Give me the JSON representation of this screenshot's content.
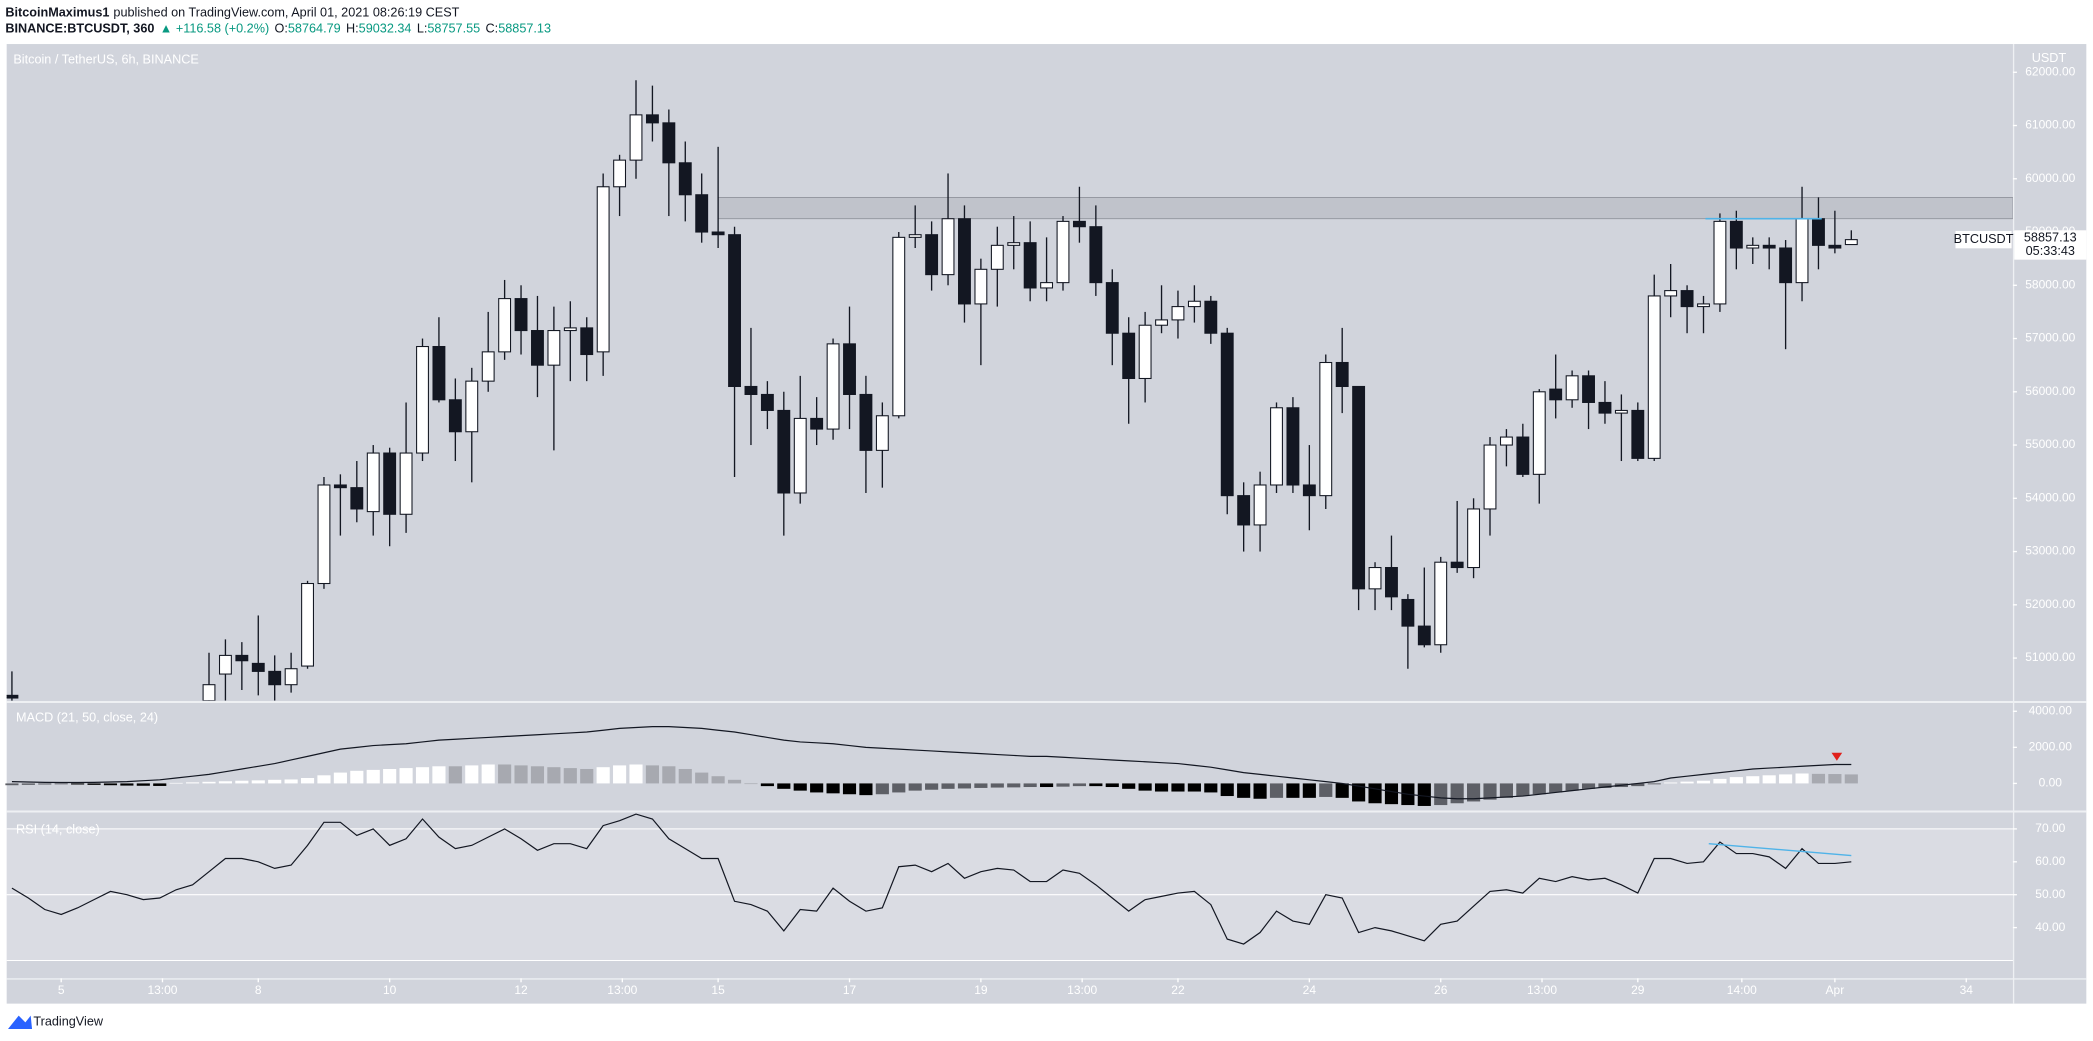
{
  "header": {
    "author": "BitcoinMaximus1",
    "published": "published on TradingView.com, April 01, 2021 08:26:19 CEST",
    "symbol": "BINANCE:BTCUSDT, 360",
    "change": "▲ +116.58 (+0.2%)",
    "o": "O:",
    "h": "H:",
    "l": "L:",
    "c": "C:"
  },
  "footer": {
    "brand": "TradingView"
  },
  "chart_data": [
    {
      "type": "candlestick",
      "title": "Bitcoin / TetherUS, 6h, BINANCE",
      "y_label": "USDT",
      "symbol_label": "BTCUSDT",
      "countdown": "05:33:43",
      "up_color": "#ffffff",
      "down_color": "#131722",
      "wick_color": "#131722",
      "xlim": [
        4.17,
        34.71
      ],
      "xticks": [
        5,
        {
          "value": 6.5417,
          "label": "13:00"
        },
        8,
        10,
        12,
        {
          "value": 13.5417,
          "label": "13:00"
        },
        15,
        17,
        19,
        {
          "value": 20.5417,
          "label": "13:00"
        },
        22,
        24,
        26,
        {
          "value": 27.5417,
          "label": "13:00"
        },
        29,
        {
          "value": 30.5833,
          "label": "14:00"
        },
        {
          "value": 32,
          "label": "Apr"
        },
        34
      ],
      "ylim": [
        50200,
        62530
      ],
      "yticks": [
        {
          "value": 51000,
          "label": "51000.00"
        },
        {
          "value": 52000,
          "label": "52000.00"
        },
        {
          "value": 53000,
          "label": "53000.00"
        },
        {
          "value": 54000,
          "label": "54000.00"
        },
        {
          "value": 55000,
          "label": "55000.00"
        },
        {
          "value": 56000,
          "label": "56000.00"
        },
        {
          "value": 57000,
          "label": "57000.00"
        },
        {
          "value": 58000,
          "label": "58000.00"
        },
        {
          "value": 59000,
          "label": "59000.00"
        },
        {
          "value": 60000,
          "label": "60000.00"
        },
        {
          "value": 61000,
          "label": "61000.00"
        },
        {
          "value": 62000,
          "label": "62000.00"
        }
      ],
      "grid": false,
      "zone": {
        "x0": 15.0,
        "y": [
          59250,
          59650
        ],
        "color": "#b2b5be"
      },
      "lines": [
        {
          "x": [
            30.03,
            31.8
          ],
          "y": [
            59250,
            59250
          ],
          "color": "#4fb3e8"
        }
      ],
      "x": [
        4.25,
        7.25,
        7.5,
        7.75,
        8,
        8.25,
        8.5,
        8.75,
        9,
        9.25,
        9.5,
        9.75,
        10,
        10.25,
        10.5,
        10.75,
        11,
        11.25,
        11.5,
        11.75,
        12,
        12.25,
        12.5,
        12.75,
        13,
        13.25,
        13.5,
        13.75,
        14,
        14.25,
        14.5,
        14.75,
        15,
        15.25,
        15.5,
        15.75,
        16,
        16.25,
        16.5,
        16.75,
        17,
        17.25,
        17.5,
        17.75,
        18,
        18.25,
        18.5,
        18.75,
        19,
        19.25,
        19.5,
        19.75,
        20,
        20.25,
        20.5,
        20.75,
        21,
        21.25,
        21.5,
        21.75,
        22,
        22.25,
        22.5,
        22.75,
        23,
        23.25,
        23.5,
        23.75,
        24,
        24.25,
        24.5,
        24.75,
        25,
        25.25,
        25.5,
        25.75,
        26,
        26.25,
        26.5,
        26.75,
        27,
        27.25,
        27.5,
        27.75,
        28,
        28.25,
        28.5,
        28.75,
        29,
        29.25,
        29.5,
        29.75,
        30,
        30.25,
        30.5,
        30.75,
        31,
        31.25,
        31.5,
        31.75,
        32,
        32.25
      ],
      "open": [
        50300,
        50200,
        50700,
        51050,
        50900,
        50750,
        50500,
        50850,
        52400,
        54250,
        54200,
        53750,
        54850,
        53700,
        54850,
        56850,
        55850,
        55250,
        56200,
        56750,
        57750,
        57150,
        56500,
        57150,
        57200,
        56750,
        59850,
        60350,
        61200,
        61050,
        60300,
        59700,
        59000,
        58950,
        56100,
        55950,
        55650,
        54100,
        55500,
        55300,
        56900,
        55950,
        54900,
        55550,
        58900,
        58950,
        58200,
        59250,
        57650,
        58300,
        58750,
        58800,
        57950,
        58050,
        59200,
        59100,
        58050,
        57100,
        56250,
        57250,
        57350,
        57600,
        57700,
        57100,
        54050,
        53500,
        54250,
        55700,
        54250,
        54050,
        56550,
        56100,
        52300,
        52700,
        52100,
        51600,
        51250,
        52800,
        52700,
        53800,
        55000,
        55150,
        54450,
        56050,
        55850,
        56300,
        55800,
        55600,
        55650,
        54750,
        57800,
        57900,
        57600,
        57650,
        59200,
        58700,
        58750,
        58700,
        58050,
        59250,
        58750,
        58764.79
      ],
      "high": [
        50750,
        51100,
        51350,
        51300,
        51800,
        51050,
        51100,
        52450,
        54400,
        54450,
        54700,
        55000,
        54950,
        55800,
        57000,
        57400,
        56250,
        56450,
        57500,
        58100,
        58000,
        57800,
        57600,
        57700,
        57400,
        60100,
        60450,
        61850,
        61750,
        61300,
        60700,
        60100,
        60600,
        59100,
        57200,
        56200,
        56000,
        56300,
        55900,
        57000,
        57600,
        56300,
        55800,
        59000,
        59500,
        59200,
        60100,
        59500,
        58500,
        59100,
        59300,
        59200,
        58900,
        59300,
        59850,
        59500,
        58300,
        57400,
        57500,
        58000,
        57900,
        58000,
        57800,
        57200,
        54300,
        54500,
        55800,
        55900,
        55000,
        56700,
        57200,
        56100,
        52800,
        53300,
        52200,
        52700,
        52900,
        53950,
        54000,
        55150,
        55300,
        55400,
        56050,
        56700,
        56400,
        56400,
        56200,
        55950,
        55800,
        58200,
        58400,
        58000,
        57800,
        59350,
        59400,
        58900,
        58900,
        58850,
        59850,
        59650,
        59400,
        59032.34
      ],
      "low": [
        50100,
        50100,
        50200,
        50400,
        50300,
        50200,
        50350,
        50800,
        52300,
        53300,
        53550,
        53300,
        53100,
        53350,
        54700,
        55800,
        54700,
        54300,
        56000,
        56600,
        56700,
        55900,
        54900,
        56200,
        56200,
        56300,
        59300,
        60000,
        60700,
        59300,
        59200,
        58800,
        58700,
        54400,
        55000,
        55300,
        53300,
        53900,
        55000,
        55100,
        55300,
        54100,
        54200,
        55500,
        58700,
        57900,
        58000,
        57300,
        56500,
        57600,
        58300,
        57700,
        57700,
        57900,
        58800,
        57800,
        56500,
        55400,
        55800,
        57100,
        57000,
        57300,
        56900,
        53700,
        53000,
        53000,
        54100,
        54100,
        53400,
        53800,
        55600,
        51900,
        51900,
        51900,
        50800,
        51200,
        51100,
        52600,
        52500,
        53300,
        54600,
        54400,
        53900,
        55500,
        55700,
        55300,
        55400,
        54700,
        54700,
        54700,
        57400,
        57100,
        57100,
        57500,
        58300,
        58400,
        58300,
        56800,
        57700,
        58300,
        58600,
        58757.55
      ],
      "close": [
        50250,
        50500,
        51050,
        50950,
        50750,
        50500,
        50800,
        52400,
        54250,
        54200,
        53800,
        54850,
        53700,
        54850,
        56850,
        55850,
        55250,
        56200,
        56750,
        57750,
        57150,
        56500,
        57150,
        57200,
        56700,
        59850,
        60350,
        61200,
        61050,
        60300,
        59700,
        59000,
        58950,
        56100,
        55950,
        55650,
        54100,
        55500,
        55300,
        56900,
        55950,
        54900,
        55550,
        58900,
        58950,
        58200,
        59250,
        57650,
        58300,
        58750,
        58800,
        57950,
        58050,
        59200,
        59100,
        58050,
        57100,
        56250,
        57250,
        57350,
        57600,
        57700,
        57100,
        54050,
        53500,
        54250,
        55700,
        54250,
        54050,
        56550,
        56100,
        52300,
        52700,
        52150,
        51600,
        51250,
        52800,
        52700,
        53800,
        55000,
        55150,
        54450,
        56000,
        55850,
        56300,
        55800,
        55600,
        55650,
        54750,
        57800,
        57900,
        57600,
        57650,
        59200,
        58700,
        58750,
        58700,
        58050,
        59250,
        58750,
        58700,
        58857.13
      ]
    },
    {
      "type": "macd",
      "title": "MACD (21, 50, close, 24)",
      "line_color": "#131722",
      "hist_colors": {
        "up_rising": "#ffffff",
        "up_falling": "#a7a9b0",
        "down_rising": "#5d5f66",
        "down_falling": "#000000"
      },
      "ylim": [
        -1480,
        4440
      ],
      "yticks": [
        {
          "value": 0,
          "label": "0.00"
        },
        {
          "value": 2000,
          "label": "2000.00"
        },
        {
          "value": 4000,
          "label": "4000.00"
        }
      ],
      "marker": {
        "x": 32.03,
        "y": 1480,
        "color": "#e0201b"
      },
      "x": [
        4.25,
        4.5,
        4.75,
        5,
        5.25,
        5.5,
        5.75,
        6,
        6.25,
        6.5,
        6.75,
        7,
        7.25,
        7.5,
        7.75,
        8,
        8.25,
        8.5,
        8.75,
        9,
        9.25,
        9.5,
        9.75,
        10,
        10.25,
        10.5,
        10.75,
        11,
        11.25,
        11.5,
        11.75,
        12,
        12.25,
        12.5,
        12.75,
        13,
        13.25,
        13.5,
        13.75,
        14,
        14.25,
        14.5,
        14.75,
        15,
        15.25,
        15.5,
        15.75,
        16,
        16.25,
        16.5,
        16.75,
        17,
        17.25,
        17.5,
        17.75,
        18,
        18.25,
        18.5,
        18.75,
        19,
        19.25,
        19.5,
        19.75,
        20,
        20.25,
        20.5,
        20.75,
        21,
        21.25,
        21.5,
        21.75,
        22,
        22.25,
        22.5,
        22.75,
        23,
        23.25,
        23.5,
        23.75,
        24,
        24.25,
        24.5,
        24.75,
        25,
        25.25,
        25.5,
        25.75,
        26,
        26.25,
        26.5,
        26.75,
        27,
        27.25,
        27.5,
        27.75,
        28,
        28.25,
        28.5,
        28.75,
        29,
        29.25,
        29.5,
        29.75,
        30,
        30.25,
        30.5,
        30.75,
        31,
        31.25,
        31.5,
        31.75,
        32,
        32.25
      ],
      "hist": [
        -100,
        -80,
        -60,
        -50,
        -60,
        -80,
        -100,
        -120,
        -130,
        -140,
        30,
        60,
        90,
        120,
        150,
        170,
        200,
        220,
        300,
        450,
        600,
        700,
        750,
        800,
        850,
        900,
        950,
        950,
        1000,
        1050,
        1050,
        1000,
        950,
        900,
        850,
        800,
        900,
        1000,
        1050,
        1000,
        950,
        800,
        600,
        400,
        200,
        0,
        -150,
        -300,
        -400,
        -500,
        -550,
        -600,
        -650,
        -600,
        -500,
        -400,
        -350,
        -300,
        -280,
        -250,
        -230,
        -220,
        -200,
        -200,
        -180,
        -150,
        -150,
        -200,
        -300,
        -400,
        -450,
        -450,
        -450,
        -500,
        -700,
        -800,
        -850,
        -800,
        -800,
        -800,
        -750,
        -800,
        -1000,
        -1100,
        -1150,
        -1200,
        -1250,
        -1200,
        -1100,
        -1000,
        -900,
        -800,
        -700,
        -600,
        -500,
        -400,
        -300,
        -250,
        -200,
        -150,
        -50,
        50,
        100,
        150,
        250,
        350,
        400,
        450,
        500,
        550,
        530,
        520,
        500
      ],
      "line": [
        100,
        80,
        60,
        50,
        50,
        60,
        80,
        100,
        150,
        200,
        300,
        400,
        500,
        650,
        800,
        950,
        1100,
        1300,
        1500,
        1700,
        1900,
        2000,
        2100,
        2150,
        2200,
        2300,
        2400,
        2450,
        2500,
        2550,
        2600,
        2650,
        2700,
        2750,
        2800,
        2850,
        2950,
        3050,
        3100,
        3150,
        3150,
        3100,
        3050,
        2950,
        2850,
        2700,
        2550,
        2400,
        2300,
        2250,
        2200,
        2100,
        2000,
        1950,
        1900,
        1850,
        1800,
        1750,
        1700,
        1650,
        1600,
        1550,
        1500,
        1500,
        1450,
        1400,
        1350,
        1300,
        1250,
        1200,
        1150,
        1100,
        1000,
        900,
        750,
        600,
        500,
        400,
        300,
        200,
        100,
        0,
        -150,
        -300,
        -450,
        -600,
        -700,
        -800,
        -850,
        -850,
        -800,
        -750,
        -700,
        -600,
        -500,
        -400,
        -300,
        -200,
        -100,
        0,
        100,
        300,
        400,
        500,
        600,
        700,
        800,
        850,
        900,
        950,
        1000,
        1050,
        1050
      ]
    },
    {
      "type": "line",
      "title": "RSI (14, close)",
      "color": "#131722",
      "ylim": [
        24.6,
        74.9
      ],
      "yticks": [
        {
          "value": 40,
          "label": "40.00"
        },
        {
          "value": 50,
          "label": "50.00"
        },
        {
          "value": 60,
          "label": "60.00"
        },
        {
          "value": 70,
          "label": "70.00"
        }
      ],
      "levels": [
        70,
        50,
        30
      ],
      "lines": [
        {
          "x": [
            30.08,
            32.25
          ],
          "y": [
            65.5,
            61.9
          ],
          "color": "#4fb3e8"
        }
      ],
      "x": [
        4.25,
        4.5,
        4.75,
        5,
        5.25,
        5.5,
        5.75,
        6,
        6.25,
        6.5,
        6.75,
        7,
        7.25,
        7.5,
        7.75,
        8,
        8.25,
        8.5,
        8.75,
        9,
        9.25,
        9.5,
        9.75,
        10,
        10.25,
        10.5,
        10.75,
        11,
        11.25,
        11.5,
        11.75,
        12,
        12.25,
        12.5,
        12.75,
        13,
        13.25,
        13.5,
        13.75,
        14,
        14.25,
        14.5,
        14.75,
        15,
        15.25,
        15.5,
        15.75,
        16,
        16.25,
        16.5,
        16.75,
        17,
        17.25,
        17.5,
        17.75,
        18,
        18.25,
        18.5,
        18.75,
        19,
        19.25,
        19.5,
        19.75,
        20,
        20.25,
        20.5,
        20.75,
        21,
        21.25,
        21.5,
        21.75,
        22,
        22.25,
        22.5,
        22.75,
        23,
        23.25,
        23.5,
        23.75,
        24,
        24.25,
        24.5,
        24.75,
        25,
        25.25,
        25.5,
        25.75,
        26,
        26.25,
        26.5,
        26.75,
        27,
        27.25,
        27.5,
        27.75,
        28,
        28.25,
        28.5,
        28.75,
        29,
        29.25,
        29.5,
        29.75,
        30,
        30.25,
        30.5,
        30.75,
        31,
        31.25,
        31.5,
        31.75,
        32,
        32.25
      ],
      "values": [
        52,
        49,
        45.5,
        44,
        46,
        48.5,
        51,
        50,
        48.5,
        49,
        51.5,
        53,
        57,
        61,
        61,
        60,
        58,
        59,
        65,
        72,
        72,
        68,
        70,
        65,
        67,
        73,
        67.5,
        64,
        65,
        67.5,
        70,
        67,
        63.5,
        65.5,
        65.5,
        64,
        71,
        72.5,
        74.5,
        73,
        67,
        64,
        61,
        61,
        48,
        47,
        45,
        39,
        45.5,
        45,
        52,
        48,
        45,
        46,
        58.5,
        59,
        57,
        59.5,
        55,
        57,
        58,
        57.5,
        54,
        54,
        57.5,
        56.5,
        53,
        49,
        45,
        48.5,
        49.5,
        50.5,
        51,
        47,
        36.5,
        35,
        38.5,
        45,
        42,
        41,
        50,
        49,
        38.5,
        40,
        39,
        37.5,
        36,
        41,
        42,
        46.5,
        51,
        51.5,
        50.5,
        55,
        54,
        55.5,
        54.5,
        55,
        53,
        50.5,
        61,
        61,
        59.5,
        60,
        66,
        62.5,
        62.5,
        61.5,
        58,
        64,
        59.5,
        59.5,
        60
      ]
    }
  ]
}
